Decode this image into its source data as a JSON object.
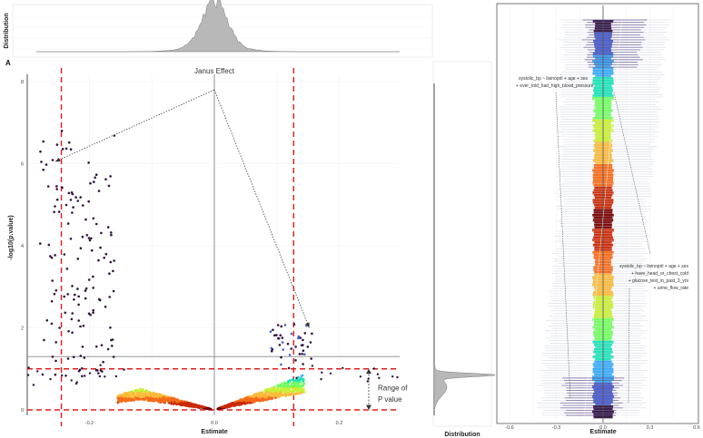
{
  "chart_data": [
    {
      "id": "A",
      "panel_label": "A",
      "type": "scatter",
      "title": "",
      "xlabel": "Estimate",
      "ylabel": "-log10(p.value)",
      "xlim": [
        -0.32,
        0.26
      ],
      "ylim": [
        -0.1,
        8.3
      ],
      "x_ticks": [
        -0.2,
        0.0,
        0.2
      ],
      "x_tick_labels": [
        "-0.2",
        "0.0",
        "0.2"
      ],
      "y_ticks": [
        0,
        2,
        4,
        6,
        8
      ],
      "y_tick_labels": [
        "0",
        "2",
        "4",
        "6",
        "8"
      ],
      "grid": true,
      "reference_lines": {
        "vertical_dashed_red": [
          -0.245,
          0.127
        ],
        "horizontal_dashed_red": [
          0.0,
          1.0
        ],
        "horizontal_gray": 1.3,
        "vertical_gray": 0.0
      },
      "annotations": {
        "janus_effect": "Janus Effect",
        "janus_origin": [
          0.0,
          7.8
        ],
        "janus_targets": [
          [
            -0.255,
            6.05
          ],
          [
            0.152,
            2.0
          ]
        ],
        "range_label_line1": "Range of",
        "range_label_line2": "P value",
        "range_arrow_y": [
          0.0,
          1.0
        ]
      },
      "series": [
        {
          "name": "left V arm (low -log10 p)",
          "shape": "curve",
          "points": [
            [
              -0.155,
              0.3
            ],
            [
              -0.12,
              0.45
            ],
            [
              -0.08,
              0.35
            ],
            [
              -0.04,
              0.18
            ],
            [
              0.0,
              0.0
            ]
          ]
        },
        {
          "name": "right V arm (low -log10 p)",
          "shape": "curve",
          "points": [
            [
              0.0,
              0.0
            ],
            [
              0.04,
              0.22
            ],
            [
              0.08,
              0.42
            ],
            [
              0.11,
              0.55
            ],
            [
              0.145,
              0.75
            ]
          ]
        },
        {
          "name": "left cloud (significant, negative estimates)",
          "x_range": [
            -0.28,
            -0.16
          ],
          "y_range": [
            0.8,
            6.8
          ],
          "approx_points": 140
        },
        {
          "name": "right cloud (significant, positive estimates)",
          "x_range": [
            0.09,
            0.16
          ],
          "y_range": [
            1.0,
            2.1
          ],
          "approx_points": 45
        }
      ],
      "point_color_scale": [
        "#30123b",
        "#4662d7",
        "#36aaf9",
        "#1ae4b6",
        "#72fe5e",
        "#c8ef34",
        "#faba39",
        "#f66b19",
        "#ca2a04",
        "#7a0403"
      ]
    },
    {
      "id": "top_marginal",
      "type": "area",
      "ylabel": "Distribution",
      "description_values": {
        "peak_estimate": 0.0,
        "support": [
          -0.12,
          0.12
        ]
      }
    },
    {
      "id": "right_marginal",
      "type": "area",
      "xlabel": "Distribution",
      "description_values": {
        "peak_log10p": 0.85,
        "support": [
          0.0,
          1.1
        ]
      }
    },
    {
      "id": "B",
      "panel_label": "B",
      "type": "area",
      "title": "",
      "xlabel": "Estimate",
      "ylabel": "",
      "xlim": [
        -0.62,
        0.62
      ],
      "x_ticks": [
        -0.6,
        -0.3,
        0.0,
        0.3,
        0.6
      ],
      "x_tick_labels": [
        "-0.6",
        "-0.3",
        "0.0",
        "0.3",
        "0.6"
      ],
      "grid": true,
      "reference_lines": {
        "vertical_gray": 0.0
      },
      "annotations": {
        "model_1_lines": [
          "systolic_bp ~ lisinopril + age + sex",
          "+ ever_told_had_high_blood_pressure"
        ],
        "model_2_lines": [
          "systolic_bp ~ lisinopril + age + sex",
          "+ have_head_or_chest_cold",
          "+ glucose_test_in_past_3_yrs",
          "+ urine_flow_rate"
        ]
      },
      "band_color_scale": [
        "#30123b",
        "#4662d7",
        "#36aaf9",
        "#1ae4b6",
        "#72fe5e",
        "#c8ef34",
        "#faba39",
        "#f66b19",
        "#ca2a04",
        "#7a0403"
      ]
    }
  ]
}
